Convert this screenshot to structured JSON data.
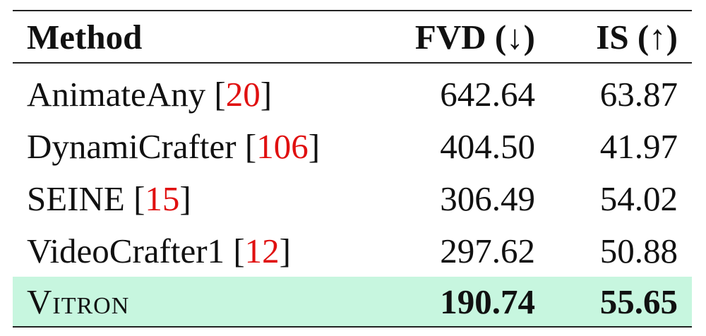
{
  "table": {
    "header": [
      "Method",
      "FVD (↓)",
      "IS (↑)"
    ],
    "rows": [
      {
        "method": "AnimateAny",
        "cite": [
          "[",
          "20",
          "]"
        ],
        "fvd": "642.64",
        "is": "63.87"
      },
      {
        "method": "DynamiCrafter",
        "cite": [
          "[",
          "106",
          "]"
        ],
        "fvd": "404.50",
        "is": "41.97"
      },
      {
        "method": "SEINE",
        "cite": [
          "[",
          "15",
          "]"
        ],
        "fvd": "306.49",
        "is": "54.02"
      },
      {
        "method": "VideoCrafter1",
        "cite": [
          "[",
          "12",
          "]"
        ],
        "fvd": "297.62",
        "is": "50.88"
      },
      {
        "method": "Vitron",
        "fvd": "190.74",
        "is": "55.65"
      }
    ]
  }
}
